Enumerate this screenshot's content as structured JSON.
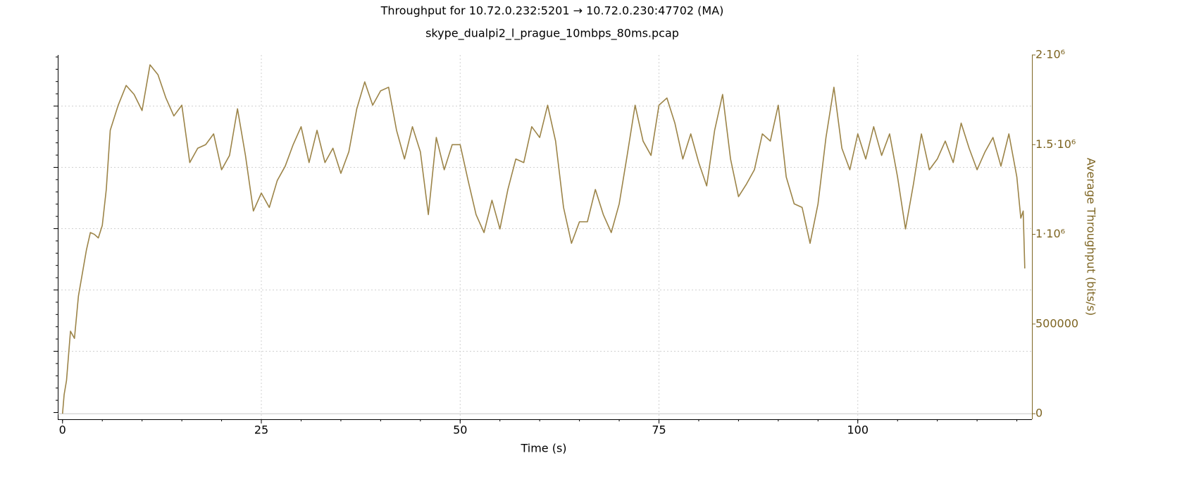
{
  "chart_data": {
    "type": "line",
    "title": "Throughput for 10.72.0.232:5201 → 10.72.0.230:47702 (MA)",
    "subtitle": "skype_dualpi2_l_prague_10mbps_80ms.pcap",
    "x_label": "Time (s)",
    "y_label": "Average Throughput (bits/s)",
    "xlim": [
      -0.6,
      121.9
    ],
    "xticks": [
      0,
      25,
      50,
      75,
      100
    ],
    "ylim": [
      -31000,
      2000000
    ],
    "yticks": [
      0,
      500000,
      {
        "value": 1000000,
        "label": "1·10⁶"
      },
      {
        "value": 1500000,
        "label": "1.5·10⁶"
      },
      {
        "value": 2000000,
        "label": "2·10⁶"
      }
    ],
    "grid": true,
    "x": [
      0,
      0.2,
      0.5,
      1,
      1.5,
      2,
      3,
      3.5,
      4,
      4.5,
      5,
      5.5,
      6,
      7,
      8,
      9,
      10,
      11,
      12,
      13,
      14,
      15,
      16,
      17,
      18,
      19,
      20,
      21,
      22,
      23,
      24,
      25,
      26,
      27,
      28,
      29,
      30,
      31,
      32,
      33,
      34,
      35,
      36,
      37,
      38,
      39,
      40,
      41,
      42,
      43,
      44,
      45,
      46,
      47,
      48,
      49,
      50,
      51,
      52,
      53,
      54,
      55,
      56,
      57,
      58,
      59,
      60,
      61,
      62,
      63,
      64,
      65,
      66,
      67,
      68,
      69,
      70,
      71,
      72,
      73,
      74,
      75,
      76,
      77,
      78,
      79,
      80,
      81,
      82,
      83,
      84,
      85,
      86,
      87,
      88,
      89,
      90,
      91,
      92,
      93,
      94,
      95,
      96,
      97,
      98,
      99,
      100,
      101,
      102,
      103,
      104,
      105,
      106,
      107,
      108,
      109,
      110,
      111,
      112,
      113,
      114,
      115,
      116,
      117,
      118,
      119,
      120,
      120.5,
      120.8,
      121
    ],
    "series": [
      {
        "color": "#9c8448",
        "values": [
          0,
          106000,
          185000,
          460000,
          420000,
          656000,
          912000,
          1010000,
          1000000,
          980000,
          1050000,
          1250000,
          1580000,
          1720000,
          1830000,
          1780000,
          1690000,
          1945000,
          1890000,
          1760000,
          1660000,
          1720000,
          1400000,
          1480000,
          1500000,
          1560000,
          1360000,
          1440000,
          1700000,
          1440000,
          1130000,
          1230000,
          1150000,
          1300000,
          1380000,
          1500000,
          1600000,
          1400000,
          1580000,
          1400000,
          1480000,
          1340000,
          1460000,
          1700000,
          1850000,
          1720000,
          1800000,
          1820000,
          1580000,
          1420000,
          1600000,
          1460000,
          1110000,
          1540000,
          1360000,
          1500000,
          1500000,
          1300000,
          1110000,
          1010000,
          1190000,
          1030000,
          1250000,
          1420000,
          1400000,
          1600000,
          1540000,
          1720000,
          1520000,
          1150000,
          950000,
          1070000,
          1070000,
          1250000,
          1110000,
          1010000,
          1170000,
          1440000,
          1720000,
          1520000,
          1440000,
          1720000,
          1760000,
          1620000,
          1420000,
          1560000,
          1400000,
          1270000,
          1580000,
          1780000,
          1420000,
          1210000,
          1280000,
          1360000,
          1560000,
          1520000,
          1720000,
          1320000,
          1170000,
          1150000,
          950000,
          1170000,
          1540000,
          1820000,
          1480000,
          1360000,
          1560000,
          1420000,
          1600000,
          1440000,
          1560000,
          1320000,
          1030000,
          1280000,
          1560000,
          1360000,
          1420000,
          1520000,
          1400000,
          1620000,
          1480000,
          1360000,
          1460000,
          1540000,
          1380000,
          1560000,
          1320000,
          1090000,
          1130000,
          810000
        ]
      }
    ]
  }
}
